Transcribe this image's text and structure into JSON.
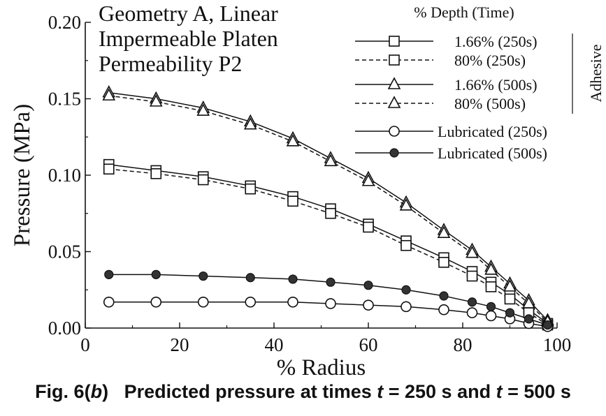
{
  "chart_data": {
    "type": "line",
    "title_lines": [
      "Geometry A, Linear",
      "Impermeable Platen",
      "Permeability P2"
    ],
    "xlabel": "% Radius",
    "ylabel": "Pressure (MPa)",
    "xlim": [
      0,
      100
    ],
    "ylim": [
      0,
      0.2
    ],
    "x_ticks": [
      "0",
      "20",
      "40",
      "60",
      "80",
      "100"
    ],
    "y_ticks": [
      "0.00",
      "0.05",
      "0.10",
      "0.15",
      "0.20"
    ],
    "grid": false,
    "legend_title": "% Depth (Time)",
    "legend_group_label": "Adhesive",
    "legend_position": "top-right",
    "series": [
      {
        "name": "1.66% (250s)",
        "marker": "square",
        "line": "solid",
        "x": [
          5,
          15,
          25,
          35,
          44,
          52,
          60,
          68,
          76,
          82,
          86,
          90,
          94,
          98
        ],
        "y": [
          0.107,
          0.103,
          0.099,
          0.093,
          0.086,
          0.078,
          0.068,
          0.057,
          0.046,
          0.037,
          0.03,
          0.022,
          0.012,
          0.003
        ]
      },
      {
        "name": "80% (250s)",
        "marker": "square",
        "line": "dashed",
        "x": [
          5,
          15,
          25,
          35,
          44,
          52,
          60,
          68,
          76,
          82,
          86,
          90,
          94,
          98
        ],
        "y": [
          0.104,
          0.101,
          0.097,
          0.091,
          0.083,
          0.075,
          0.066,
          0.054,
          0.043,
          0.034,
          0.027,
          0.019,
          0.01,
          0.002
        ]
      },
      {
        "name": "1.66% (500s)",
        "marker": "triangle",
        "line": "solid",
        "x": [
          5,
          15,
          25,
          35,
          44,
          52,
          60,
          68,
          76,
          82,
          86,
          90,
          94,
          98
        ],
        "y": [
          0.154,
          0.15,
          0.144,
          0.135,
          0.124,
          0.111,
          0.098,
          0.082,
          0.064,
          0.051,
          0.04,
          0.029,
          0.018,
          0.005
        ]
      },
      {
        "name": "80% (500s)",
        "marker": "triangle",
        "line": "dashed",
        "x": [
          5,
          15,
          25,
          35,
          44,
          52,
          60,
          68,
          76,
          82,
          86,
          90,
          94,
          98
        ],
        "y": [
          0.152,
          0.148,
          0.142,
          0.133,
          0.122,
          0.109,
          0.096,
          0.08,
          0.062,
          0.049,
          0.038,
          0.027,
          0.016,
          0.004
        ]
      },
      {
        "name": "Lubricated (250s)",
        "marker": "circle-open",
        "line": "solid",
        "x": [
          5,
          15,
          25,
          35,
          44,
          52,
          60,
          68,
          76,
          82,
          86,
          90,
          94,
          98
        ],
        "y": [
          0.017,
          0.017,
          0.017,
          0.017,
          0.017,
          0.016,
          0.015,
          0.014,
          0.012,
          0.01,
          0.008,
          0.006,
          0.003,
          0.001
        ]
      },
      {
        "name": "Lubricated (500s)",
        "marker": "circle-filled",
        "line": "solid",
        "x": [
          5,
          15,
          25,
          35,
          44,
          52,
          60,
          68,
          76,
          82,
          86,
          90,
          94,
          98
        ],
        "y": [
          0.035,
          0.035,
          0.034,
          0.033,
          0.032,
          0.03,
          0.028,
          0.025,
          0.021,
          0.017,
          0.014,
          0.01,
          0.006,
          0.002
        ]
      }
    ]
  },
  "caption": {
    "fig": "Fig. 6(",
    "fig_italic": "b",
    "fig_close": ")",
    "text1": "Predicted pressure at times ",
    "t1": "t",
    "text2": " = 250 s and ",
    "t2": "t",
    "text3": " = 500 s"
  }
}
